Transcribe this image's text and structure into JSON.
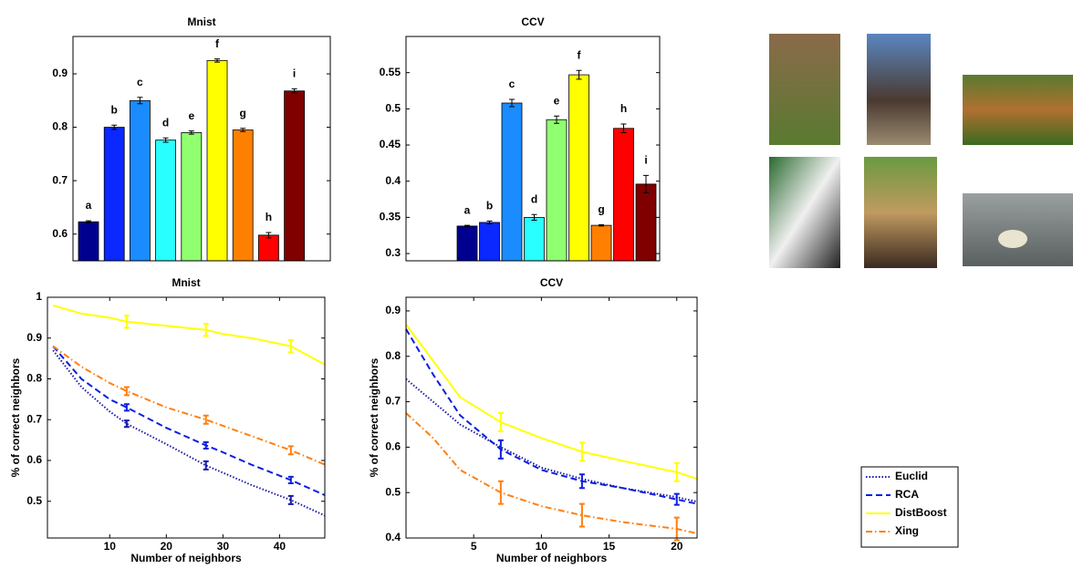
{
  "chart_data": [
    {
      "type": "bar",
      "title": "Mnist",
      "categories": [
        "a",
        "b",
        "c",
        "d",
        "e",
        "f",
        "g",
        "h",
        "i"
      ],
      "values": [
        0.623,
        0.8,
        0.85,
        0.776,
        0.79,
        0.925,
        0.795,
        0.598,
        0.868
      ],
      "errors": [
        0.002,
        0.004,
        0.006,
        0.004,
        0.003,
        0.003,
        0.003,
        0.005,
        0.004
      ],
      "colors": [
        "#00008f",
        "#0a28ff",
        "#1a8cff",
        "#2affff",
        "#90ff70",
        "#ffff00",
        "#ff8000",
        "#ff0000",
        "#800000"
      ],
      "ylim": [
        0.55,
        0.97
      ],
      "yticks": [
        0.6,
        0.7,
        0.8,
        0.9
      ]
    },
    {
      "type": "bar",
      "title": "CCV",
      "categories": [
        "a",
        "b",
        "c",
        "d",
        "e",
        "f",
        "g",
        "h",
        "i"
      ],
      "values": [
        0.338,
        0.343,
        0.508,
        0.35,
        0.485,
        0.547,
        0.339,
        0.473,
        0.396
      ],
      "errors": [
        0.001,
        0.002,
        0.005,
        0.004,
        0.005,
        0.006,
        0.001,
        0.006,
        0.012
      ],
      "colors": [
        "#00008f",
        "#0a28ff",
        "#1a8cff",
        "#2affff",
        "#90ff70",
        "#ffff00",
        "#ff8000",
        "#ff0000",
        "#800000"
      ],
      "ylim": [
        0.29,
        0.6
      ],
      "yticks": [
        0.3,
        0.35,
        0.4,
        0.45,
        0.5,
        0.55
      ]
    },
    {
      "type": "line",
      "title": "Mnist",
      "xlabel": "Number of neighbors",
      "ylabel": "% of correct neighbors",
      "x": [
        0,
        5,
        10,
        13,
        20,
        27,
        30,
        35,
        42,
        48
      ],
      "series": [
        {
          "name": "Euclid",
          "color": "#1a1aa8",
          "linestyle": "dotted",
          "values": [
            0.87,
            0.78,
            0.72,
            0.69,
            0.64,
            0.588,
            0.57,
            0.54,
            0.503,
            0.465
          ],
          "errors": [
            null,
            null,
            null,
            0.008,
            null,
            0.01,
            null,
            null,
            0.01,
            null
          ]
        },
        {
          "name": "RCA",
          "color": "#0a1fe0",
          "linestyle": "dashed",
          "values": [
            0.88,
            0.8,
            0.75,
            0.73,
            0.68,
            0.637,
            0.62,
            0.59,
            0.552,
            0.515
          ],
          "errors": [
            null,
            null,
            null,
            0.008,
            null,
            0.008,
            null,
            null,
            0.008,
            null
          ]
        },
        {
          "name": "DistBoost",
          "color": "#ffff00",
          "linestyle": "solid",
          "values": [
            0.98,
            0.96,
            0.95,
            0.94,
            0.93,
            0.92,
            0.91,
            0.9,
            0.88,
            0.835
          ],
          "errors": [
            null,
            null,
            null,
            0.015,
            null,
            0.015,
            null,
            null,
            0.015,
            null
          ]
        },
        {
          "name": "Xing",
          "color": "#ff7f0e",
          "linestyle": "dashdot",
          "values": [
            0.88,
            0.83,
            0.79,
            0.77,
            0.73,
            0.7,
            0.685,
            0.66,
            0.625,
            0.59
          ],
          "errors": [
            null,
            null,
            null,
            0.01,
            null,
            0.01,
            null,
            null,
            0.01,
            null
          ]
        }
      ],
      "xlim": [
        -1,
        48
      ],
      "ylim": [
        0.41,
        1
      ],
      "xticks": [
        10,
        20,
        30,
        40
      ],
      "yticks": [
        0.5,
        0.6,
        0.7,
        0.8,
        0.9,
        1
      ]
    },
    {
      "type": "line",
      "title": "CCV",
      "xlabel": "Number of neighbors",
      "ylabel": "% of correct neighbors",
      "x": [
        0,
        2,
        4,
        7,
        10,
        13,
        16,
        20,
        21.5
      ],
      "series": [
        {
          "name": "Euclid",
          "color": "#1a1aa8",
          "linestyle": "dotted",
          "values": [
            0.75,
            0.7,
            0.65,
            0.6,
            0.555,
            0.53,
            0.51,
            0.49,
            0.48
          ],
          "errors": [
            null,
            null,
            null,
            null,
            null,
            null,
            null,
            null,
            null
          ]
        },
        {
          "name": "RCA",
          "color": "#0a1fe0",
          "linestyle": "dashed",
          "values": [
            0.86,
            0.76,
            0.67,
            0.595,
            0.55,
            0.525,
            0.51,
            0.485,
            0.475
          ],
          "errors": [
            null,
            null,
            null,
            0.02,
            null,
            0.015,
            null,
            0.012,
            null
          ]
        },
        {
          "name": "DistBoost",
          "color": "#ffff00",
          "linestyle": "solid",
          "values": [
            0.87,
            0.79,
            0.71,
            0.655,
            0.62,
            0.59,
            0.57,
            0.545,
            0.53
          ],
          "errors": [
            null,
            null,
            null,
            0.02,
            null,
            0.02,
            null,
            0.02,
            null
          ]
        },
        {
          "name": "Xing",
          "color": "#ff7f0e",
          "linestyle": "dashdot",
          "values": [
            0.675,
            0.62,
            0.55,
            0.5,
            0.47,
            0.45,
            0.435,
            0.42,
            0.41
          ],
          "errors": [
            null,
            null,
            null,
            0.025,
            null,
            0.025,
            null,
            0.025,
            null
          ]
        }
      ],
      "xlim": [
        0,
        21.5
      ],
      "ylim": [
        0.4,
        0.93
      ],
      "xticks": [
        5,
        10,
        15,
        20
      ],
      "yticks": [
        0.4,
        0.5,
        0.6,
        0.7,
        0.8,
        0.9
      ],
      "legend": "outside-right"
    }
  ]
}
